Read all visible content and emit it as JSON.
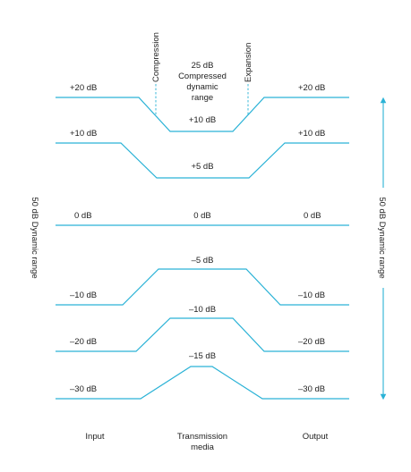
{
  "colors": {
    "trace": "#2ab2d6",
    "guide": "#2ab2d6",
    "text": "#222222"
  },
  "annotations": {
    "compression": "Compression",
    "expansion": "Expansion",
    "compressed_range": [
      "25 dB",
      "Compressed",
      "dynamic",
      "range"
    ]
  },
  "levels": [
    {
      "input": "+20 dB",
      "media": "+10 dB",
      "output": "+20 dB"
    },
    {
      "input": "+10 dB",
      "media": "+5 dB",
      "output": "+10 dB"
    },
    {
      "input": "0 dB",
      "media": "0 dB",
      "output": "0 dB"
    },
    {
      "input": "–10 dB",
      "media": "–5 dB",
      "output": "–10 dB"
    },
    {
      "input": "–20 dB",
      "media": "–10 dB",
      "output": "–20 dB"
    },
    {
      "input": "–30 dB",
      "media": "–15 dB",
      "output": "–30 dB"
    }
  ],
  "side_labels": {
    "left": "50 dB Dynamic range",
    "right": "50 dB Dynamic range"
  },
  "columns": {
    "input": "Input",
    "media": [
      "Transmission",
      "media"
    ],
    "output": "Output"
  }
}
